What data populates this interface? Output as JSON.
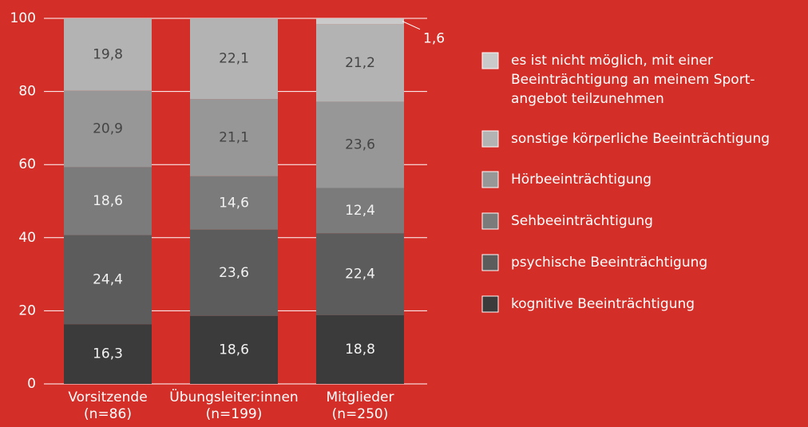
{
  "chart_data": {
    "type": "stacked_bar",
    "categories": [
      [
        "Vorsitzende",
        "(n=86)"
      ],
      [
        "Übungsleiter:innen",
        "(n=199)"
      ],
      [
        "Mitglieder",
        "(n=250)"
      ]
    ],
    "series": [
      {
        "name": [
          "kognitive Beeinträchtigung"
        ],
        "color": "#3b3b3b",
        "values": [
          16.3,
          18.6,
          18.8
        ],
        "value_labels": [
          "16,3",
          "18,6",
          "18,8"
        ]
      },
      {
        "name": [
          "psychische Beeinträchtigung"
        ],
        "color": "#5c5c5c",
        "values": [
          24.4,
          23.6,
          22.4
        ],
        "value_labels": [
          "24,4",
          "23,6",
          "22,4"
        ]
      },
      {
        "name": [
          "Sehbeeinträchtigung"
        ],
        "color": "#7b7b7b",
        "values": [
          18.6,
          14.6,
          12.4
        ],
        "value_labels": [
          "18,6",
          "14,6",
          "12,4"
        ]
      },
      {
        "name": [
          "Hörbeeinträchtigung"
        ],
        "color": "#979797",
        "values": [
          20.9,
          21.1,
          23.6
        ],
        "value_labels": [
          "20,9",
          "21,1",
          "23,6"
        ]
      },
      {
        "name": [
          "sonstige körperliche Beeinträchtigung"
        ],
        "color": "#b3b3b3",
        "values": [
          19.8,
          22.1,
          21.2
        ],
        "value_labels": [
          "19,8",
          "22,1",
          "21,2"
        ]
      },
      {
        "name": [
          "es ist nicht möglich, mit einer",
          "Beeinträchtigung an meinem Sport-",
          "angebot teilzunehmen"
        ],
        "color": "#cacaca",
        "values": [
          null,
          null,
          1.6
        ],
        "value_labels": [
          null,
          null,
          "1,6"
        ]
      }
    ],
    "ylim": [
      0,
      100
    ],
    "yticks": [
      0,
      20,
      40,
      60,
      80,
      100
    ],
    "grid": true
  }
}
